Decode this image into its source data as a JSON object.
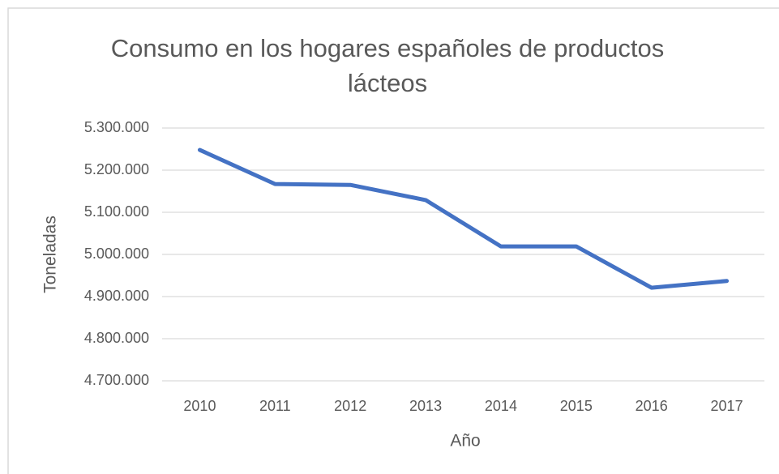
{
  "chart_data": {
    "type": "line",
    "title": "Consumo en los hogares españoles de productos lácteos",
    "xlabel": "Año",
    "ylabel": "Toneladas",
    "categories": [
      "2010",
      "2011",
      "2012",
      "2013",
      "2014",
      "2015",
      "2016",
      "2017"
    ],
    "series": [
      {
        "name": "Toneladas",
        "color": "#4472c4",
        "values": [
          5248000,
          5167000,
          5165000,
          5129000,
          5019000,
          5019000,
          4921000,
          4937000
        ]
      }
    ],
    "ylim": [
      4700000,
      5300000
    ],
    "yticks": [
      {
        "value": 4700000,
        "label": "4.700.000"
      },
      {
        "value": 4800000,
        "label": "4.800.000"
      },
      {
        "value": 4900000,
        "label": "4.900.000"
      },
      {
        "value": 5000000,
        "label": "5.000.000"
      },
      {
        "value": 5100000,
        "label": "5.100.000"
      },
      {
        "value": 5200000,
        "label": "5.200.000"
      },
      {
        "value": 5300000,
        "label": "5.300.000"
      }
    ],
    "grid": true
  }
}
